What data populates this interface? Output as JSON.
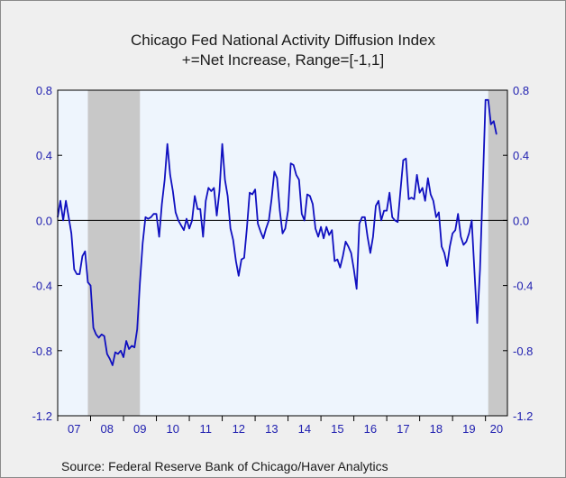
{
  "chart_data": {
    "type": "line",
    "title": "Chicago Fed National Activity Diffusion Index",
    "subtitle": "+=Net Increase, Range=[-1,1]",
    "source": "Source:  Federal Reserve Bank of Chicago/Haver Analytics",
    "xlabel": "",
    "ylabel": "",
    "x_start": "2007-01",
    "x_end": "2020-09",
    "ylim": [
      -1.2,
      0.8
    ],
    "yticks": [
      0.8,
      0.4,
      0.0,
      -0.4,
      -0.8,
      -1.2
    ],
    "ytick_labels": [
      "0.8",
      "0.4",
      "0.0",
      "-0.4",
      "-0.8",
      "-1.2"
    ],
    "xtick_labels": [
      "07",
      "08",
      "09",
      "10",
      "11",
      "12",
      "13",
      "14",
      "15",
      "16",
      "17",
      "18",
      "19",
      "20"
    ],
    "grid": false,
    "zero_line": true,
    "recessions": [
      {
        "start": "2007-12",
        "end": "2009-06"
      },
      {
        "start": "2020-02",
        "end": "2020-09"
      }
    ],
    "colors": {
      "line": "#1010c0",
      "plot_bg": "#eef5fd",
      "recession": "#c8c8c8",
      "tick_text": "#2020b0"
    },
    "series": [
      {
        "values": [
          0.02,
          0.12,
          0.0,
          0.12,
          0.02,
          -0.08,
          -0.3,
          -0.33,
          -0.33,
          -0.22,
          -0.19,
          -0.38,
          -0.4,
          -0.66,
          -0.7,
          -0.72,
          -0.7,
          -0.71,
          -0.82,
          -0.85,
          -0.89,
          -0.81,
          -0.82,
          -0.8,
          -0.84,
          -0.74,
          -0.79,
          -0.77,
          -0.78,
          -0.67,
          -0.38,
          -0.14,
          0.02,
          0.01,
          0.02,
          0.04,
          0.04,
          -0.1,
          0.1,
          0.25,
          0.47,
          0.28,
          0.18,
          0.05,
          0.0,
          -0.03,
          -0.06,
          0.01,
          -0.05,
          0.0,
          0.15,
          0.07,
          0.07,
          -0.1,
          0.12,
          0.2,
          0.18,
          0.2,
          0.03,
          0.18,
          0.47,
          0.25,
          0.15,
          -0.05,
          -0.12,
          -0.25,
          -0.34,
          -0.24,
          -0.23,
          -0.05,
          0.17,
          0.16,
          0.19,
          -0.02,
          -0.07,
          -0.11,
          -0.05,
          0.0,
          0.13,
          0.3,
          0.26,
          0.06,
          -0.08,
          -0.05,
          0.06,
          0.35,
          0.34,
          0.28,
          0.25,
          0.04,
          0.0,
          0.16,
          0.15,
          0.1,
          -0.05,
          -0.1,
          -0.04,
          -0.11,
          -0.04,
          -0.09,
          -0.06,
          -0.25,
          -0.24,
          -0.29,
          -0.22,
          -0.13,
          -0.16,
          -0.2,
          -0.3,
          -0.42,
          -0.02,
          0.02,
          0.02,
          -0.1,
          -0.2,
          -0.1,
          0.09,
          0.12,
          0.0,
          0.06,
          0.06,
          0.17,
          0.02,
          0.0,
          -0.01,
          0.18,
          0.37,
          0.38,
          0.13,
          0.14,
          0.13,
          0.28,
          0.17,
          0.2,
          0.12,
          0.26,
          0.16,
          0.12,
          0.02,
          0.05,
          -0.16,
          -0.2,
          -0.28,
          -0.16,
          -0.08,
          -0.06,
          0.04,
          -0.1,
          -0.15,
          -0.13,
          -0.08,
          0.0,
          -0.32,
          -0.63,
          -0.3,
          0.2,
          0.74,
          0.74,
          0.59,
          0.61,
          0.53
        ]
      }
    ]
  }
}
